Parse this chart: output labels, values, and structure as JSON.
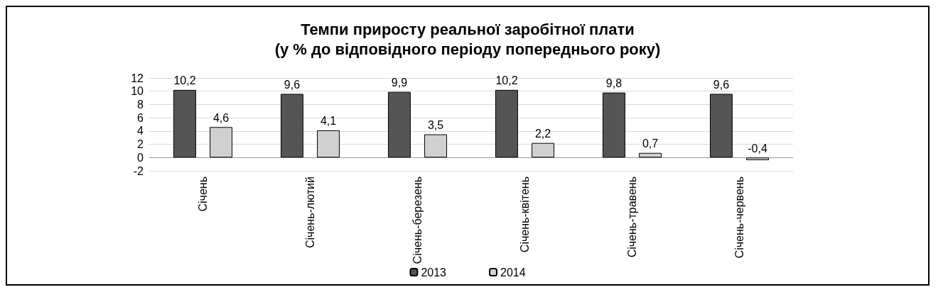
{
  "chart_data": {
    "type": "bar",
    "title": "Темпи приросту реальної заробітної плати\n(у % до відповідного періоду попереднього року)",
    "categories": [
      "Січень",
      "Січень-лютий",
      "Січень-березень",
      "Січень-квітень",
      "Січень-травень",
      "Січень-червень"
    ],
    "series": [
      {
        "name": "2013",
        "color": "#555555",
        "values": [
          10.2,
          9.6,
          9.9,
          10.2,
          9.8,
          9.6
        ],
        "value_labels": [
          "10,2",
          "9,6",
          "9,9",
          "10,2",
          "9,8",
          "9,6"
        ]
      },
      {
        "name": "2014",
        "color": "#d0d0d0",
        "values": [
          4.6,
          4.1,
          3.5,
          2.2,
          0.7,
          -0.4
        ],
        "value_labels": [
          "4,6",
          "4,1",
          "3,5",
          "2,2",
          "0,7",
          "-0,4"
        ]
      }
    ],
    "ylim": [
      -2,
      12
    ],
    "yticks": [
      -2,
      0,
      2,
      4,
      6,
      8,
      10,
      12
    ],
    "grid": "y",
    "legend": "bottom"
  }
}
